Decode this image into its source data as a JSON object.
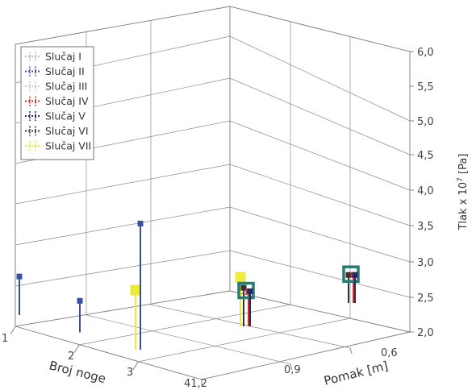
{
  "chart_data": {
    "type": "3d-stem",
    "xlabel": "Broj noge",
    "ylabel": "Pomak [m]",
    "zlabel": "Tlak x 10",
    "zlabel_exponent": "7",
    "zlabel_unit": " [Pa]",
    "x_ticks": [
      "1",
      "2",
      "3"
    ],
    "y_ticks": [
      "41,2",
      "0,9",
      "0,6"
    ],
    "z_ticks": [
      "2,0",
      "2,5",
      "3,0",
      "3,5",
      "4,0",
      "4,5",
      "5,0",
      "5,5",
      "6,0"
    ],
    "zlim": [
      2.0,
      6.0
    ],
    "legend_position": "top-left",
    "series": [
      {
        "name": "Slučaj I",
        "color": "#a8c4dc",
        "points": []
      },
      {
        "name": "Slučaj II",
        "color": "#3a4fa0",
        "points": [
          {
            "x": "1",
            "y": "41,2",
            "z": 3.1
          },
          {
            "x": "2",
            "y": "41,2",
            "z": 2.9
          },
          {
            "x": "3",
            "y": "41,2",
            "z": 5.6
          }
        ]
      },
      {
        "name": "Slučaj III",
        "color": "#c8c8c8",
        "points": []
      },
      {
        "name": "Slučaj IV",
        "color": "#e02828",
        "points": [
          {
            "x": "3",
            "y": "0,9",
            "z": 3.0
          },
          {
            "x": "3",
            "y": "0,6",
            "z": 2.8
          }
        ]
      },
      {
        "name": "Slučaj V",
        "color": "#1e2a6a",
        "points": [
          {
            "x": "3",
            "y": "0,9",
            "z": 3.0
          },
          {
            "x": "3",
            "y": "0,6",
            "z": 2.8
          }
        ]
      },
      {
        "name": "Slučaj VI",
        "color": "#333333",
        "points": [
          {
            "x": "3",
            "y": "0,9",
            "z": 3.1
          },
          {
            "x": "3",
            "y": "0,6",
            "z": 2.8
          }
        ]
      },
      {
        "name": "Slučaj VII",
        "color": "#eeea3a",
        "points": [
          {
            "x": "3",
            "y": "41,2",
            "z": 3.7
          },
          {
            "x": "3",
            "y": "0,9",
            "z": 3.4
          }
        ]
      }
    ]
  }
}
